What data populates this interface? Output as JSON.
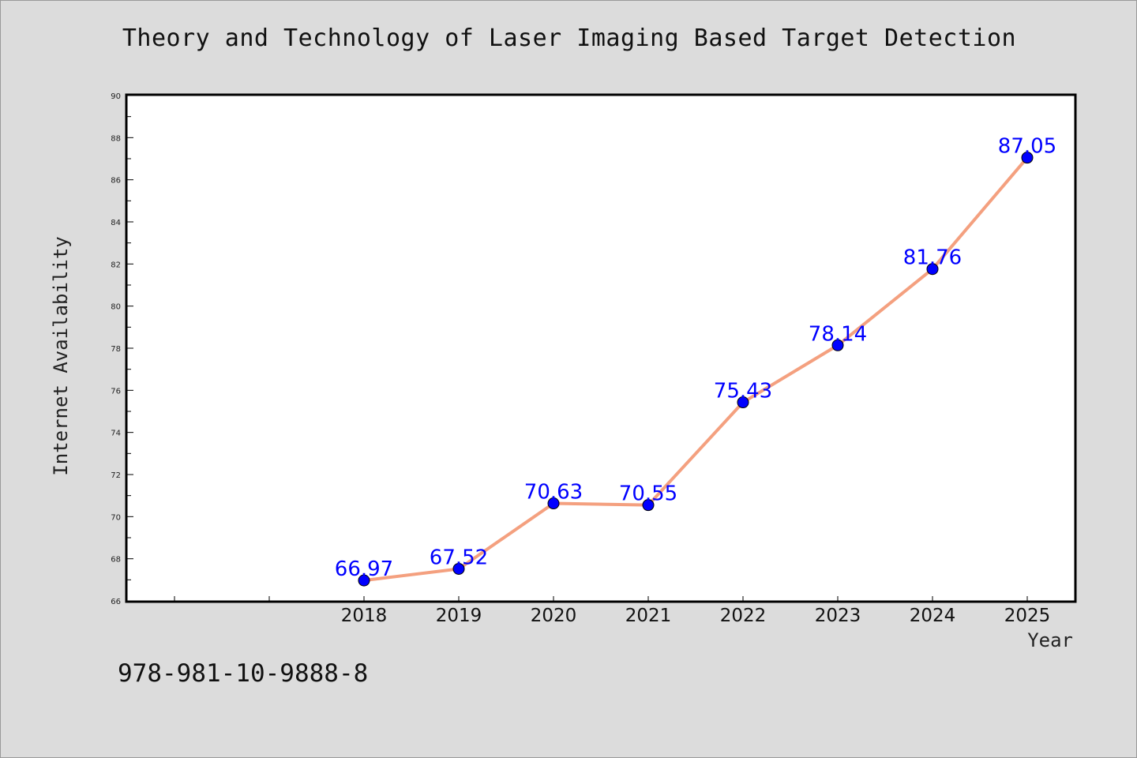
{
  "chart_data": {
    "type": "line",
    "title": "Theory and Technology of Laser Imaging Based Target Detection",
    "xlabel": "Year",
    "ylabel": "Internet Availability",
    "categories": [
      "2018",
      "2019",
      "2020",
      "2021",
      "2022",
      "2023",
      "2024",
      "2025"
    ],
    "series": [
      {
        "values": [
          66.97,
          67.52,
          70.63,
          70.55,
          75.43,
          78.14,
          81.76,
          87.05
        ],
        "labels": [
          "66.97",
          "67.52",
          "70.63",
          "70.55",
          "75.43",
          "78.14",
          "81.76",
          "87.05"
        ]
      }
    ],
    "ylim": [
      66,
      90
    ],
    "yticks": [
      "66",
      "68",
      "70",
      "72",
      "74",
      "76",
      "78",
      "80",
      "82",
      "84",
      "86",
      "88",
      "90"
    ],
    "grid": false,
    "legend": "none",
    "colors": {
      "line": "#f4a07f",
      "marker": "#0000ff",
      "label": "#0000ff"
    }
  },
  "footer": {
    "isbn": "978-981-10-9888-8"
  }
}
